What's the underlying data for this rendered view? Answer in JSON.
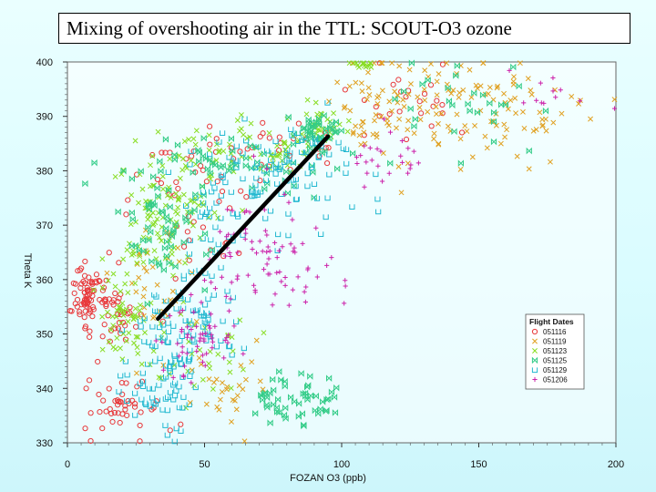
{
  "title": "Mixing of overshooting air in the TTL:  SCOUT-O3 ozone",
  "chart_data": {
    "type": "scatter",
    "title": "Mixing of overshooting air in the TTL:  SCOUT-O3 ozone",
    "xlabel": "FOZAN O3 (ppb)",
    "ylabel": "Theta K",
    "xlim": [
      0,
      200
    ],
    "ylim": [
      330,
      400
    ],
    "x_ticks": [
      "0",
      "50",
      "100",
      "150",
      "200"
    ],
    "y_ticks": [
      "330",
      "340",
      "350",
      "360",
      "370",
      "380",
      "390",
      "400"
    ],
    "legend_title": "Flight Dates",
    "legend_placement": "lower-right",
    "grid": false,
    "series": [
      {
        "name": "051116",
        "marker": "circle",
        "color": "#e8383a",
        "clusters": [
          {
            "cx": 7,
            "cy": 357,
            "sx": 2.5,
            "sy": 3,
            "n": 70
          },
          {
            "cx": 17,
            "cy": 356,
            "sx": 5,
            "sy": 4,
            "n": 40
          },
          {
            "cx": 22,
            "cy": 336,
            "sx": 7,
            "sy": 3,
            "n": 45
          },
          {
            "cx": 42,
            "cy": 374,
            "sx": 12,
            "sy": 7,
            "n": 45
          },
          {
            "cx": 75,
            "cy": 384,
            "sx": 14,
            "sy": 2.5,
            "n": 30
          },
          {
            "cx": 125,
            "cy": 393,
            "sx": 10,
            "sy": 4,
            "n": 25
          }
        ]
      },
      {
        "name": "051119",
        "marker": "x",
        "color": "#e0a020",
        "clusters": [
          {
            "cx": 140,
            "cy": 391,
            "sx": 22,
            "sy": 5,
            "n": 130
          },
          {
            "cx": 30,
            "cy": 361,
            "sx": 7,
            "sy": 5,
            "n": 35
          },
          {
            "cx": 60,
            "cy": 340,
            "sx": 10,
            "sy": 4,
            "n": 30
          },
          {
            "cx": 110,
            "cy": 392,
            "sx": 8,
            "sy": 5,
            "n": 30
          }
        ]
      },
      {
        "name": "051123",
        "marker": "x",
        "color": "#88dd22",
        "clusters": [
          {
            "cx": 65,
            "cy": 384,
            "sx": 15,
            "sy": 2.5,
            "n": 70
          },
          {
            "cx": 35,
            "cy": 373,
            "sx": 9,
            "sy": 6,
            "n": 110
          },
          {
            "cx": 20,
            "cy": 352,
            "sx": 6,
            "sy": 4,
            "n": 55
          },
          {
            "cx": 48,
            "cy": 346,
            "sx": 8,
            "sy": 5,
            "n": 35
          },
          {
            "cx": 93,
            "cy": 388,
            "sx": 4,
            "sy": 2,
            "n": 35
          },
          {
            "cx": 107,
            "cy": 399.5,
            "sx": 3,
            "sy": 0.6,
            "n": 15
          }
        ]
      },
      {
        "name": "051125",
        "marker": "bowtie",
        "color": "#33cc88",
        "clusters": [
          {
            "cx": 60,
            "cy": 381,
            "sx": 20,
            "sy": 3,
            "n": 60
          },
          {
            "cx": 92,
            "cy": 387,
            "sx": 4,
            "sy": 2,
            "n": 40
          },
          {
            "cx": 82,
            "cy": 338,
            "sx": 9,
            "sy": 2.5,
            "n": 55
          },
          {
            "cx": 35,
            "cy": 370,
            "sx": 9,
            "sy": 5,
            "n": 55
          },
          {
            "cx": 150,
            "cy": 392,
            "sx": 14,
            "sy": 4,
            "n": 30
          }
        ]
      },
      {
        "name": "051129",
        "marker": "square-open",
        "color": "#22b8d0",
        "clusters": [
          {
            "cx": 80,
            "cy": 380,
            "sx": 16,
            "sy": 4,
            "n": 95
          },
          {
            "cx": 35,
            "cy": 343,
            "sx": 7,
            "sy": 6,
            "n": 85
          },
          {
            "cx": 45,
            "cy": 353,
            "sx": 9,
            "sy": 4,
            "n": 60
          },
          {
            "cx": 58,
            "cy": 372,
            "sx": 12,
            "sy": 5,
            "n": 40
          }
        ]
      },
      {
        "name": "051206",
        "marker": "plus",
        "color": "#cc22aa",
        "clusters": [
          {
            "cx": 70,
            "cy": 366,
            "sx": 12,
            "sy": 5,
            "n": 60
          },
          {
            "cx": 47,
            "cy": 349,
            "sx": 8,
            "sy": 3,
            "n": 55
          },
          {
            "cx": 115,
            "cy": 382,
            "sx": 8,
            "sy": 2.5,
            "n": 25
          },
          {
            "cx": 80,
            "cy": 361,
            "sx": 8,
            "sy": 3,
            "n": 25
          },
          {
            "cx": 175,
            "cy": 394,
            "sx": 12,
            "sy": 3,
            "n": 12
          }
        ]
      }
    ],
    "annotations": [
      {
        "type": "line",
        "from": [
          33,
          352.8
        ],
        "to": [
          95,
          386.3
        ],
        "color": "#000000"
      }
    ]
  }
}
